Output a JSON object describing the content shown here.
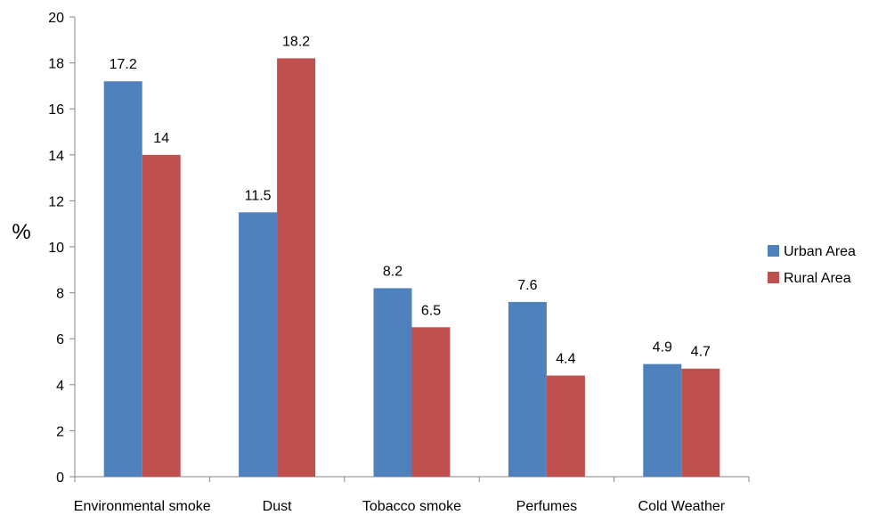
{
  "chart_data": {
    "type": "bar",
    "title": "",
    "xlabel": "",
    "ylabel": "%",
    "ylim": [
      0,
      20
    ],
    "yticks": [
      0,
      2,
      4,
      6,
      8,
      10,
      12,
      14,
      16,
      18,
      20
    ],
    "grid": false,
    "legend_position": "right",
    "categories": [
      "Environmental smoke",
      "Dust",
      "Tobacco smoke",
      "Perfumes",
      "Cold Weather"
    ],
    "series": [
      {
        "name": "Urban Area",
        "color": "#4F81BD",
        "values": [
          17.2,
          11.5,
          8.2,
          7.6,
          4.9
        ]
      },
      {
        "name": "Rural Area",
        "color": "#C0504D",
        "values": [
          14,
          18.2,
          6.5,
          4.4,
          4.7
        ]
      }
    ]
  }
}
